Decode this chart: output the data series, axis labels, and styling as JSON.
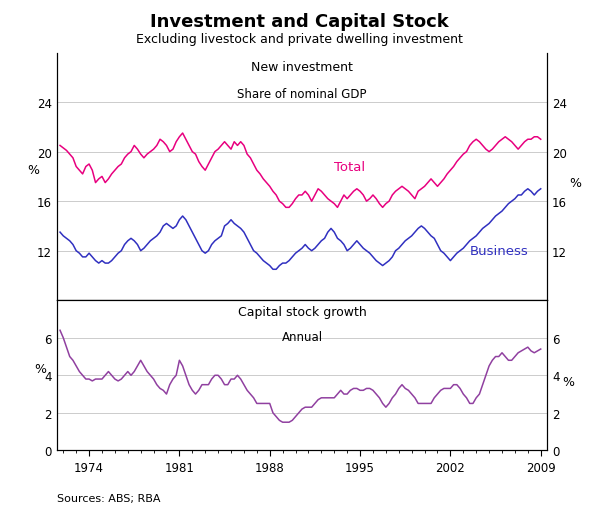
{
  "title": "Investment and Capital Stock",
  "subtitle": "Excluding livestock and private dwelling investment",
  "source": "Sources: ABS; RBA",
  "top_panel": {
    "title_line1": "New investment",
    "title_line2": "Share of nominal GDP",
    "ylim": [
      8,
      28
    ],
    "yticks": [
      12,
      16,
      20,
      24
    ],
    "ytick_labels": [
      "12",
      "16",
      "20",
      "24"
    ],
    "total_color": "#E8007F",
    "business_color": "#3030C0",
    "total_label": "Total",
    "business_label": "Business"
  },
  "bottom_panel": {
    "title_line1": "Capital stock growth",
    "title_line2": "Annual",
    "ylim": [
      0,
      8
    ],
    "yticks": [
      0,
      2,
      4,
      6
    ],
    "ytick_labels": [
      "0",
      "2",
      "4",
      "6"
    ],
    "line_color": "#9040A0"
  },
  "xticks": [
    1974,
    1981,
    1988,
    1995,
    2002,
    2009
  ],
  "xlim_start": 1971.5,
  "xlim_end": 2009.5,
  "total_data": [
    [
      1971.75,
      20.5
    ],
    [
      1972.0,
      20.3
    ],
    [
      1972.25,
      20.1
    ],
    [
      1972.5,
      19.8
    ],
    [
      1972.75,
      19.5
    ],
    [
      1973.0,
      18.8
    ],
    [
      1973.25,
      18.5
    ],
    [
      1973.5,
      18.2
    ],
    [
      1973.75,
      18.8
    ],
    [
      1974.0,
      19.0
    ],
    [
      1974.25,
      18.5
    ],
    [
      1974.5,
      17.5
    ],
    [
      1974.75,
      17.8
    ],
    [
      1975.0,
      18.0
    ],
    [
      1975.25,
      17.5
    ],
    [
      1975.5,
      17.8
    ],
    [
      1975.75,
      18.2
    ],
    [
      1976.0,
      18.5
    ],
    [
      1976.25,
      18.8
    ],
    [
      1976.5,
      19.0
    ],
    [
      1976.75,
      19.5
    ],
    [
      1977.0,
      19.8
    ],
    [
      1977.25,
      20.0
    ],
    [
      1977.5,
      20.5
    ],
    [
      1977.75,
      20.2
    ],
    [
      1978.0,
      19.8
    ],
    [
      1978.25,
      19.5
    ],
    [
      1978.5,
      19.8
    ],
    [
      1978.75,
      20.0
    ],
    [
      1979.0,
      20.2
    ],
    [
      1979.25,
      20.5
    ],
    [
      1979.5,
      21.0
    ],
    [
      1979.75,
      20.8
    ],
    [
      1980.0,
      20.5
    ],
    [
      1980.25,
      20.0
    ],
    [
      1980.5,
      20.2
    ],
    [
      1980.75,
      20.8
    ],
    [
      1981.0,
      21.2
    ],
    [
      1981.25,
      21.5
    ],
    [
      1981.5,
      21.0
    ],
    [
      1981.75,
      20.5
    ],
    [
      1982.0,
      20.0
    ],
    [
      1982.25,
      19.8
    ],
    [
      1982.5,
      19.2
    ],
    [
      1982.75,
      18.8
    ],
    [
      1983.0,
      18.5
    ],
    [
      1983.25,
      19.0
    ],
    [
      1983.5,
      19.5
    ],
    [
      1983.75,
      20.0
    ],
    [
      1984.0,
      20.2
    ],
    [
      1984.25,
      20.5
    ],
    [
      1984.5,
      20.8
    ],
    [
      1984.75,
      20.5
    ],
    [
      1985.0,
      20.2
    ],
    [
      1985.25,
      20.8
    ],
    [
      1985.5,
      20.5
    ],
    [
      1985.75,
      20.8
    ],
    [
      1986.0,
      20.5
    ],
    [
      1986.25,
      19.8
    ],
    [
      1986.5,
      19.5
    ],
    [
      1986.75,
      19.0
    ],
    [
      1987.0,
      18.5
    ],
    [
      1987.25,
      18.2
    ],
    [
      1987.5,
      17.8
    ],
    [
      1987.75,
      17.5
    ],
    [
      1988.0,
      17.2
    ],
    [
      1988.25,
      16.8
    ],
    [
      1988.5,
      16.5
    ],
    [
      1988.75,
      16.0
    ],
    [
      1989.0,
      15.8
    ],
    [
      1989.25,
      15.5
    ],
    [
      1989.5,
      15.5
    ],
    [
      1989.75,
      15.8
    ],
    [
      1990.0,
      16.2
    ],
    [
      1990.25,
      16.5
    ],
    [
      1990.5,
      16.5
    ],
    [
      1990.75,
      16.8
    ],
    [
      1991.0,
      16.5
    ],
    [
      1991.25,
      16.0
    ],
    [
      1991.5,
      16.5
    ],
    [
      1991.75,
      17.0
    ],
    [
      1992.0,
      16.8
    ],
    [
      1992.25,
      16.5
    ],
    [
      1992.5,
      16.2
    ],
    [
      1992.75,
      16.0
    ],
    [
      1993.0,
      15.8
    ],
    [
      1993.25,
      15.5
    ],
    [
      1993.5,
      16.0
    ],
    [
      1993.75,
      16.5
    ],
    [
      1994.0,
      16.2
    ],
    [
      1994.25,
      16.5
    ],
    [
      1994.5,
      16.8
    ],
    [
      1994.75,
      17.0
    ],
    [
      1995.0,
      16.8
    ],
    [
      1995.25,
      16.5
    ],
    [
      1995.5,
      16.0
    ],
    [
      1995.75,
      16.2
    ],
    [
      1996.0,
      16.5
    ],
    [
      1996.25,
      16.2
    ],
    [
      1996.5,
      15.8
    ],
    [
      1996.75,
      15.5
    ],
    [
      1997.0,
      15.8
    ],
    [
      1997.25,
      16.0
    ],
    [
      1997.5,
      16.5
    ],
    [
      1997.75,
      16.8
    ],
    [
      1998.0,
      17.0
    ],
    [
      1998.25,
      17.2
    ],
    [
      1998.5,
      17.0
    ],
    [
      1998.75,
      16.8
    ],
    [
      1999.0,
      16.5
    ],
    [
      1999.25,
      16.2
    ],
    [
      1999.5,
      16.8
    ],
    [
      1999.75,
      17.0
    ],
    [
      2000.0,
      17.2
    ],
    [
      2000.25,
      17.5
    ],
    [
      2000.5,
      17.8
    ],
    [
      2000.75,
      17.5
    ],
    [
      2001.0,
      17.2
    ],
    [
      2001.25,
      17.5
    ],
    [
      2001.5,
      17.8
    ],
    [
      2001.75,
      18.2
    ],
    [
      2002.0,
      18.5
    ],
    [
      2002.25,
      18.8
    ],
    [
      2002.5,
      19.2
    ],
    [
      2002.75,
      19.5
    ],
    [
      2003.0,
      19.8
    ],
    [
      2003.25,
      20.0
    ],
    [
      2003.5,
      20.5
    ],
    [
      2003.75,
      20.8
    ],
    [
      2004.0,
      21.0
    ],
    [
      2004.25,
      20.8
    ],
    [
      2004.5,
      20.5
    ],
    [
      2004.75,
      20.2
    ],
    [
      2005.0,
      20.0
    ],
    [
      2005.25,
      20.2
    ],
    [
      2005.5,
      20.5
    ],
    [
      2005.75,
      20.8
    ],
    [
      2006.0,
      21.0
    ],
    [
      2006.25,
      21.2
    ],
    [
      2006.5,
      21.0
    ],
    [
      2006.75,
      20.8
    ],
    [
      2007.0,
      20.5
    ],
    [
      2007.25,
      20.2
    ],
    [
      2007.5,
      20.5
    ],
    [
      2007.75,
      20.8
    ],
    [
      2008.0,
      21.0
    ],
    [
      2008.25,
      21.0
    ],
    [
      2008.5,
      21.2
    ],
    [
      2008.75,
      21.2
    ],
    [
      2009.0,
      21.0
    ]
  ],
  "business_data": [
    [
      1971.75,
      13.5
    ],
    [
      1972.0,
      13.2
    ],
    [
      1972.25,
      13.0
    ],
    [
      1972.5,
      12.8
    ],
    [
      1972.75,
      12.5
    ],
    [
      1973.0,
      12.0
    ],
    [
      1973.25,
      11.8
    ],
    [
      1973.5,
      11.5
    ],
    [
      1973.75,
      11.5
    ],
    [
      1974.0,
      11.8
    ],
    [
      1974.25,
      11.5
    ],
    [
      1974.5,
      11.2
    ],
    [
      1974.75,
      11.0
    ],
    [
      1975.0,
      11.2
    ],
    [
      1975.25,
      11.0
    ],
    [
      1975.5,
      11.0
    ],
    [
      1975.75,
      11.2
    ],
    [
      1976.0,
      11.5
    ],
    [
      1976.25,
      11.8
    ],
    [
      1976.5,
      12.0
    ],
    [
      1976.75,
      12.5
    ],
    [
      1977.0,
      12.8
    ],
    [
      1977.25,
      13.0
    ],
    [
      1977.5,
      12.8
    ],
    [
      1977.75,
      12.5
    ],
    [
      1978.0,
      12.0
    ],
    [
      1978.25,
      12.2
    ],
    [
      1978.5,
      12.5
    ],
    [
      1978.75,
      12.8
    ],
    [
      1979.0,
      13.0
    ],
    [
      1979.25,
      13.2
    ],
    [
      1979.5,
      13.5
    ],
    [
      1979.75,
      14.0
    ],
    [
      1980.0,
      14.2
    ],
    [
      1980.25,
      14.0
    ],
    [
      1980.5,
      13.8
    ],
    [
      1980.75,
      14.0
    ],
    [
      1981.0,
      14.5
    ],
    [
      1981.25,
      14.8
    ],
    [
      1981.5,
      14.5
    ],
    [
      1981.75,
      14.0
    ],
    [
      1982.0,
      13.5
    ],
    [
      1982.25,
      13.0
    ],
    [
      1982.5,
      12.5
    ],
    [
      1982.75,
      12.0
    ],
    [
      1983.0,
      11.8
    ],
    [
      1983.25,
      12.0
    ],
    [
      1983.5,
      12.5
    ],
    [
      1983.75,
      12.8
    ],
    [
      1984.0,
      13.0
    ],
    [
      1984.25,
      13.2
    ],
    [
      1984.5,
      14.0
    ],
    [
      1984.75,
      14.2
    ],
    [
      1985.0,
      14.5
    ],
    [
      1985.25,
      14.2
    ],
    [
      1985.5,
      14.0
    ],
    [
      1985.75,
      13.8
    ],
    [
      1986.0,
      13.5
    ],
    [
      1986.25,
      13.0
    ],
    [
      1986.5,
      12.5
    ],
    [
      1986.75,
      12.0
    ],
    [
      1987.0,
      11.8
    ],
    [
      1987.25,
      11.5
    ],
    [
      1987.5,
      11.2
    ],
    [
      1987.75,
      11.0
    ],
    [
      1988.0,
      10.8
    ],
    [
      1988.25,
      10.5
    ],
    [
      1988.5,
      10.5
    ],
    [
      1988.75,
      10.8
    ],
    [
      1989.0,
      11.0
    ],
    [
      1989.25,
      11.0
    ],
    [
      1989.5,
      11.2
    ],
    [
      1989.75,
      11.5
    ],
    [
      1990.0,
      11.8
    ],
    [
      1990.25,
      12.0
    ],
    [
      1990.5,
      12.2
    ],
    [
      1990.75,
      12.5
    ],
    [
      1991.0,
      12.2
    ],
    [
      1991.25,
      12.0
    ],
    [
      1991.5,
      12.2
    ],
    [
      1991.75,
      12.5
    ],
    [
      1992.0,
      12.8
    ],
    [
      1992.25,
      13.0
    ],
    [
      1992.5,
      13.5
    ],
    [
      1992.75,
      13.8
    ],
    [
      1993.0,
      13.5
    ],
    [
      1993.25,
      13.0
    ],
    [
      1993.5,
      12.8
    ],
    [
      1993.75,
      12.5
    ],
    [
      1994.0,
      12.0
    ],
    [
      1994.25,
      12.2
    ],
    [
      1994.5,
      12.5
    ],
    [
      1994.75,
      12.8
    ],
    [
      1995.0,
      12.5
    ],
    [
      1995.25,
      12.2
    ],
    [
      1995.5,
      12.0
    ],
    [
      1995.75,
      11.8
    ],
    [
      1996.0,
      11.5
    ],
    [
      1996.25,
      11.2
    ],
    [
      1996.5,
      11.0
    ],
    [
      1996.75,
      10.8
    ],
    [
      1997.0,
      11.0
    ],
    [
      1997.25,
      11.2
    ],
    [
      1997.5,
      11.5
    ],
    [
      1997.75,
      12.0
    ],
    [
      1998.0,
      12.2
    ],
    [
      1998.25,
      12.5
    ],
    [
      1998.5,
      12.8
    ],
    [
      1998.75,
      13.0
    ],
    [
      1999.0,
      13.2
    ],
    [
      1999.25,
      13.5
    ],
    [
      1999.5,
      13.8
    ],
    [
      1999.75,
      14.0
    ],
    [
      2000.0,
      13.8
    ],
    [
      2000.25,
      13.5
    ],
    [
      2000.5,
      13.2
    ],
    [
      2000.75,
      13.0
    ],
    [
      2001.0,
      12.5
    ],
    [
      2001.25,
      12.0
    ],
    [
      2001.5,
      11.8
    ],
    [
      2001.75,
      11.5
    ],
    [
      2002.0,
      11.2
    ],
    [
      2002.25,
      11.5
    ],
    [
      2002.5,
      11.8
    ],
    [
      2002.75,
      12.0
    ],
    [
      2003.0,
      12.2
    ],
    [
      2003.25,
      12.5
    ],
    [
      2003.5,
      12.8
    ],
    [
      2003.75,
      13.0
    ],
    [
      2004.0,
      13.2
    ],
    [
      2004.25,
      13.5
    ],
    [
      2004.5,
      13.8
    ],
    [
      2004.75,
      14.0
    ],
    [
      2005.0,
      14.2
    ],
    [
      2005.25,
      14.5
    ],
    [
      2005.5,
      14.8
    ],
    [
      2005.75,
      15.0
    ],
    [
      2006.0,
      15.2
    ],
    [
      2006.25,
      15.5
    ],
    [
      2006.5,
      15.8
    ],
    [
      2006.75,
      16.0
    ],
    [
      2007.0,
      16.2
    ],
    [
      2007.25,
      16.5
    ],
    [
      2007.5,
      16.5
    ],
    [
      2007.75,
      16.8
    ],
    [
      2008.0,
      17.0
    ],
    [
      2008.25,
      16.8
    ],
    [
      2008.5,
      16.5
    ],
    [
      2008.75,
      16.8
    ],
    [
      2009.0,
      17.0
    ]
  ],
  "capital_data": [
    [
      1971.75,
      6.4
    ],
    [
      1972.0,
      6.0
    ],
    [
      1972.25,
      5.5
    ],
    [
      1972.5,
      5.0
    ],
    [
      1972.75,
      4.8
    ],
    [
      1973.0,
      4.5
    ],
    [
      1973.25,
      4.2
    ],
    [
      1973.5,
      4.0
    ],
    [
      1973.75,
      3.8
    ],
    [
      1974.0,
      3.8
    ],
    [
      1974.25,
      3.7
    ],
    [
      1974.5,
      3.8
    ],
    [
      1974.75,
      3.8
    ],
    [
      1975.0,
      3.8
    ],
    [
      1975.25,
      4.0
    ],
    [
      1975.5,
      4.2
    ],
    [
      1975.75,
      4.0
    ],
    [
      1976.0,
      3.8
    ],
    [
      1976.25,
      3.7
    ],
    [
      1976.5,
      3.8
    ],
    [
      1976.75,
      4.0
    ],
    [
      1977.0,
      4.2
    ],
    [
      1977.25,
      4.0
    ],
    [
      1977.5,
      4.2
    ],
    [
      1977.75,
      4.5
    ],
    [
      1978.0,
      4.8
    ],
    [
      1978.25,
      4.5
    ],
    [
      1978.5,
      4.2
    ],
    [
      1978.75,
      4.0
    ],
    [
      1979.0,
      3.8
    ],
    [
      1979.25,
      3.5
    ],
    [
      1979.5,
      3.3
    ],
    [
      1979.75,
      3.2
    ],
    [
      1980.0,
      3.0
    ],
    [
      1980.25,
      3.5
    ],
    [
      1980.5,
      3.8
    ],
    [
      1980.75,
      4.0
    ],
    [
      1981.0,
      4.8
    ],
    [
      1981.25,
      4.5
    ],
    [
      1981.5,
      4.0
    ],
    [
      1981.75,
      3.5
    ],
    [
      1982.0,
      3.2
    ],
    [
      1982.25,
      3.0
    ],
    [
      1982.5,
      3.2
    ],
    [
      1982.75,
      3.5
    ],
    [
      1983.0,
      3.5
    ],
    [
      1983.25,
      3.5
    ],
    [
      1983.5,
      3.8
    ],
    [
      1983.75,
      4.0
    ],
    [
      1984.0,
      4.0
    ],
    [
      1984.25,
      3.8
    ],
    [
      1984.5,
      3.5
    ],
    [
      1984.75,
      3.5
    ],
    [
      1985.0,
      3.8
    ],
    [
      1985.25,
      3.8
    ],
    [
      1985.5,
      4.0
    ],
    [
      1985.75,
      3.8
    ],
    [
      1986.0,
      3.5
    ],
    [
      1986.25,
      3.2
    ],
    [
      1986.5,
      3.0
    ],
    [
      1986.75,
      2.8
    ],
    [
      1987.0,
      2.5
    ],
    [
      1987.25,
      2.5
    ],
    [
      1987.5,
      2.5
    ],
    [
      1987.75,
      2.5
    ],
    [
      1988.0,
      2.5
    ],
    [
      1988.25,
      2.0
    ],
    [
      1988.5,
      1.8
    ],
    [
      1988.75,
      1.6
    ],
    [
      1989.0,
      1.5
    ],
    [
      1989.25,
      1.5
    ],
    [
      1989.5,
      1.5
    ],
    [
      1989.75,
      1.6
    ],
    [
      1990.0,
      1.8
    ],
    [
      1990.25,
      2.0
    ],
    [
      1990.5,
      2.2
    ],
    [
      1990.75,
      2.3
    ],
    [
      1991.0,
      2.3
    ],
    [
      1991.25,
      2.3
    ],
    [
      1991.5,
      2.5
    ],
    [
      1991.75,
      2.7
    ],
    [
      1992.0,
      2.8
    ],
    [
      1992.25,
      2.8
    ],
    [
      1992.5,
      2.8
    ],
    [
      1992.75,
      2.8
    ],
    [
      1993.0,
      2.8
    ],
    [
      1993.25,
      3.0
    ],
    [
      1993.5,
      3.2
    ],
    [
      1993.75,
      3.0
    ],
    [
      1994.0,
      3.0
    ],
    [
      1994.25,
      3.2
    ],
    [
      1994.5,
      3.3
    ],
    [
      1994.75,
      3.3
    ],
    [
      1995.0,
      3.2
    ],
    [
      1995.25,
      3.2
    ],
    [
      1995.5,
      3.3
    ],
    [
      1995.75,
      3.3
    ],
    [
      1996.0,
      3.2
    ],
    [
      1996.25,
      3.0
    ],
    [
      1996.5,
      2.8
    ],
    [
      1996.75,
      2.5
    ],
    [
      1997.0,
      2.3
    ],
    [
      1997.25,
      2.5
    ],
    [
      1997.5,
      2.8
    ],
    [
      1997.75,
      3.0
    ],
    [
      1998.0,
      3.3
    ],
    [
      1998.25,
      3.5
    ],
    [
      1998.5,
      3.3
    ],
    [
      1998.75,
      3.2
    ],
    [
      1999.0,
      3.0
    ],
    [
      1999.25,
      2.8
    ],
    [
      1999.5,
      2.5
    ],
    [
      1999.75,
      2.5
    ],
    [
      2000.0,
      2.5
    ],
    [
      2000.25,
      2.5
    ],
    [
      2000.5,
      2.5
    ],
    [
      2000.75,
      2.8
    ],
    [
      2001.0,
      3.0
    ],
    [
      2001.25,
      3.2
    ],
    [
      2001.5,
      3.3
    ],
    [
      2001.75,
      3.3
    ],
    [
      2002.0,
      3.3
    ],
    [
      2002.25,
      3.5
    ],
    [
      2002.5,
      3.5
    ],
    [
      2002.75,
      3.3
    ],
    [
      2003.0,
      3.0
    ],
    [
      2003.25,
      2.8
    ],
    [
      2003.5,
      2.5
    ],
    [
      2003.75,
      2.5
    ],
    [
      2004.0,
      2.8
    ],
    [
      2004.25,
      3.0
    ],
    [
      2004.5,
      3.5
    ],
    [
      2004.75,
      4.0
    ],
    [
      2005.0,
      4.5
    ],
    [
      2005.25,
      4.8
    ],
    [
      2005.5,
      5.0
    ],
    [
      2005.75,
      5.0
    ],
    [
      2006.0,
      5.2
    ],
    [
      2006.25,
      5.0
    ],
    [
      2006.5,
      4.8
    ],
    [
      2006.75,
      4.8
    ],
    [
      2007.0,
      5.0
    ],
    [
      2007.25,
      5.2
    ],
    [
      2007.5,
      5.3
    ],
    [
      2007.75,
      5.4
    ],
    [
      2008.0,
      5.5
    ],
    [
      2008.25,
      5.3
    ],
    [
      2008.5,
      5.2
    ],
    [
      2008.75,
      5.3
    ],
    [
      2009.0,
      5.4
    ]
  ]
}
